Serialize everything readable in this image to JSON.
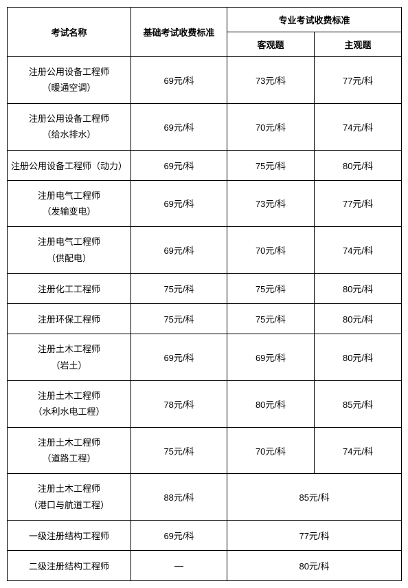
{
  "table": {
    "header": {
      "exam_name": "考试名称",
      "basic_fee": "基础考试收费标准",
      "prof_fee": "专业考试收费标准",
      "objective": "客观题",
      "subjective": "主观题"
    },
    "unit_suffix": "元/科",
    "rows": [
      {
        "name_line1": "注册公用设备工程师",
        "name_line2": "（暖通空调）",
        "basic": "69元/科",
        "obj": "73元/科",
        "subj": "77元/科",
        "merged": false,
        "multiline": true
      },
      {
        "name_line1": "注册公用设备工程师",
        "name_line2": "（给水排水）",
        "basic": "69元/科",
        "obj": "70元/科",
        "subj": "74元/科",
        "merged": false,
        "multiline": true
      },
      {
        "name_line1": "注册公用设备工程师（动力）",
        "name_line2": "",
        "basic": "69元/科",
        "obj": "75元/科",
        "subj": "80元/科",
        "merged": false,
        "multiline": false
      },
      {
        "name_line1": "注册电气工程师",
        "name_line2": "（发输变电）",
        "basic": "69元/科",
        "obj": "73元/科",
        "subj": "77元/科",
        "merged": false,
        "multiline": true
      },
      {
        "name_line1": "注册电气工程师",
        "name_line2": "（供配电）",
        "basic": "69元/科",
        "obj": "70元/科",
        "subj": "74元/科",
        "merged": false,
        "multiline": true
      },
      {
        "name_line1": "注册化工工程师",
        "name_line2": "",
        "basic": "75元/科",
        "obj": "75元/科",
        "subj": "80元/科",
        "merged": false,
        "multiline": false
      },
      {
        "name_line1": "注册环保工程师",
        "name_line2": "",
        "basic": "75元/科",
        "obj": "75元/科",
        "subj": "80元/科",
        "merged": false,
        "multiline": false
      },
      {
        "name_line1": "注册土木工程师",
        "name_line2": "（岩土）",
        "basic": "69元/科",
        "obj": "69元/科",
        "subj": "80元/科",
        "merged": false,
        "multiline": true
      },
      {
        "name_line1": "注册土木工程师",
        "name_line2": "（水利水电工程）",
        "basic": "78元/科",
        "obj": "80元/科",
        "subj": "85元/科",
        "merged": false,
        "multiline": true
      },
      {
        "name_line1": "注册土木工程师",
        "name_line2": "（道路工程）",
        "basic": "75元/科",
        "obj": "70元/科",
        "subj": "74元/科",
        "merged": false,
        "multiline": true
      },
      {
        "name_line1": "注册土木工程师",
        "name_line2": "（港口与航道工程）",
        "basic": "88元/科",
        "merged_value": "85元/科",
        "merged": true,
        "multiline": true
      },
      {
        "name_line1": "一级注册结构工程师",
        "name_line2": "",
        "basic": "69元/科",
        "merged_value": "77元/科",
        "merged": true,
        "multiline": false
      },
      {
        "name_line1": "二级注册结构工程师",
        "name_line2": "",
        "basic": "—",
        "merged_value": "80元/科",
        "merged": true,
        "multiline": false
      }
    ]
  }
}
